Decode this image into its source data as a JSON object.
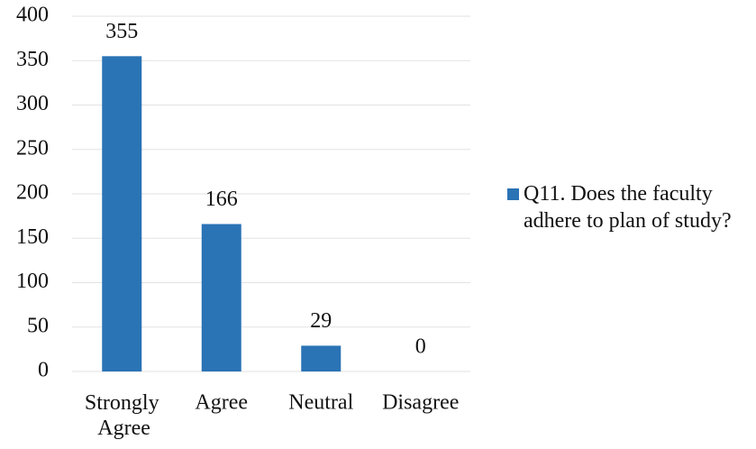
{
  "chart_data": {
    "type": "bar",
    "categories": [
      "Strongly Agree",
      "Agree",
      "Neutral",
      "Disagree"
    ],
    "series": [
      {
        "name": "Q11. Does the faculty adhere to plan of study?",
        "color": "#2a73b5",
        "values": [
          355,
          166,
          29,
          0
        ]
      }
    ],
    "ylim": [
      0,
      400
    ],
    "yticks": [
      0,
      50,
      100,
      150,
      200,
      250,
      300,
      350,
      400
    ],
    "grid": true,
    "legend": "right"
  }
}
